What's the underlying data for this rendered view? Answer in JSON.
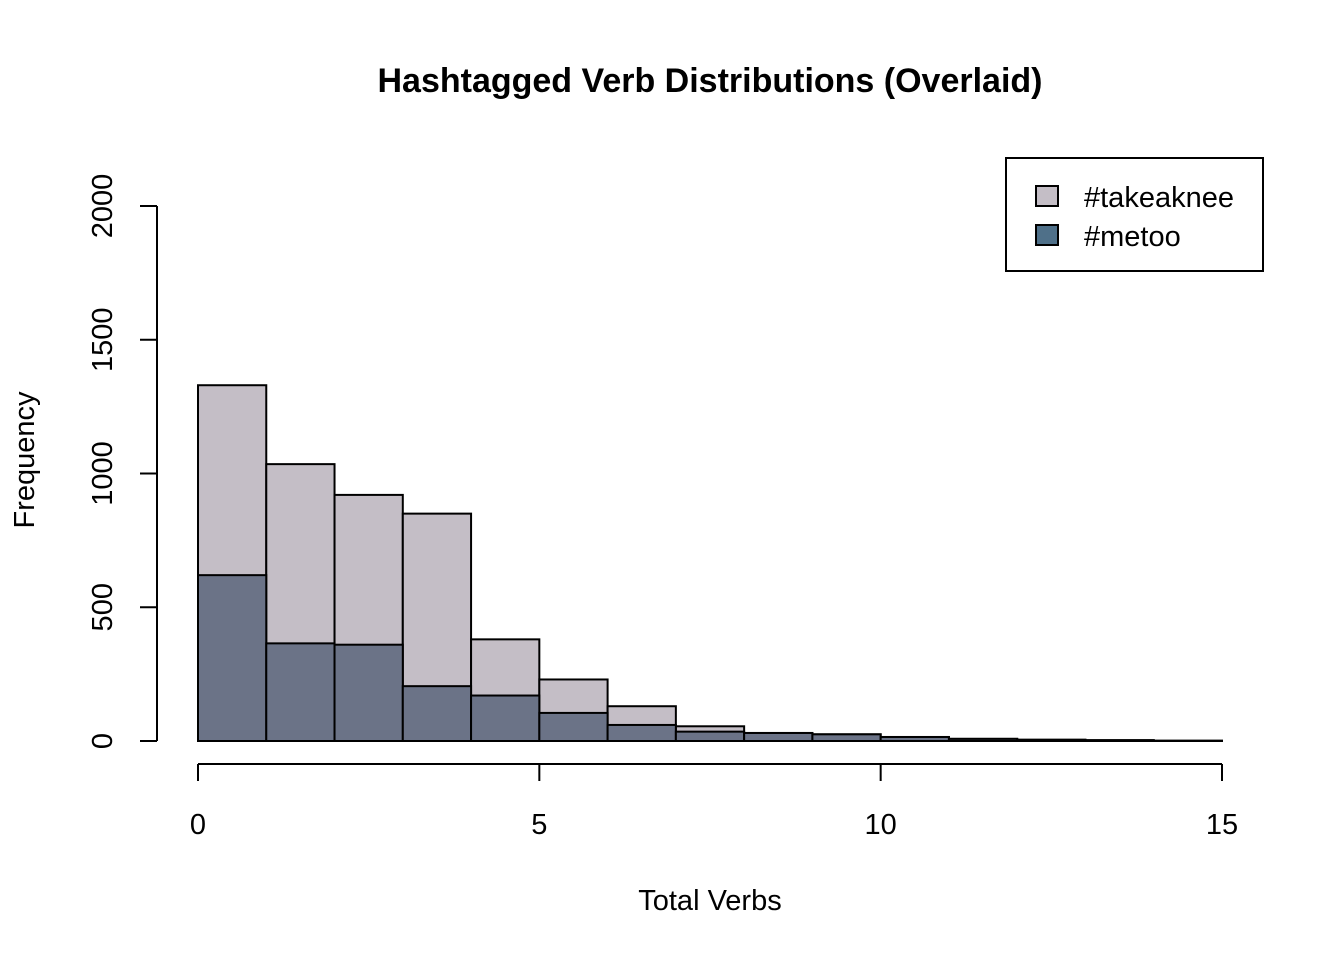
{
  "chart_data": {
    "type": "bar",
    "title": "Hashtagged Verb Distributions (Overlaid)",
    "xlabel": "Total Verbs",
    "ylabel": "Frequency",
    "xlim": [
      0,
      15
    ],
    "ylim": [
      0,
      2000
    ],
    "x_ticks": [
      0,
      5,
      10,
      15
    ],
    "y_ticks": [
      0,
      500,
      1000,
      1500,
      2000
    ],
    "bin_edges": [
      0,
      1,
      2,
      3,
      4,
      5,
      6,
      7,
      8,
      9,
      10,
      11,
      12,
      13,
      14,
      15
    ],
    "grid": false,
    "legend_position": "top-right",
    "series": [
      {
        "name": "#takeaknee",
        "color": "#c4bec6",
        "legend_color": "#c4bec6",
        "values": [
          1330,
          1035,
          920,
          850,
          380,
          230,
          130,
          55,
          30,
          25,
          15,
          8,
          5,
          3,
          1
        ]
      },
      {
        "name": "#metoo",
        "color": "#6b7387",
        "legend_color": "#4f7089",
        "values": [
          620,
          365,
          360,
          205,
          170,
          105,
          60,
          35,
          30,
          25,
          15,
          8,
          4,
          3,
          1
        ]
      }
    ]
  }
}
